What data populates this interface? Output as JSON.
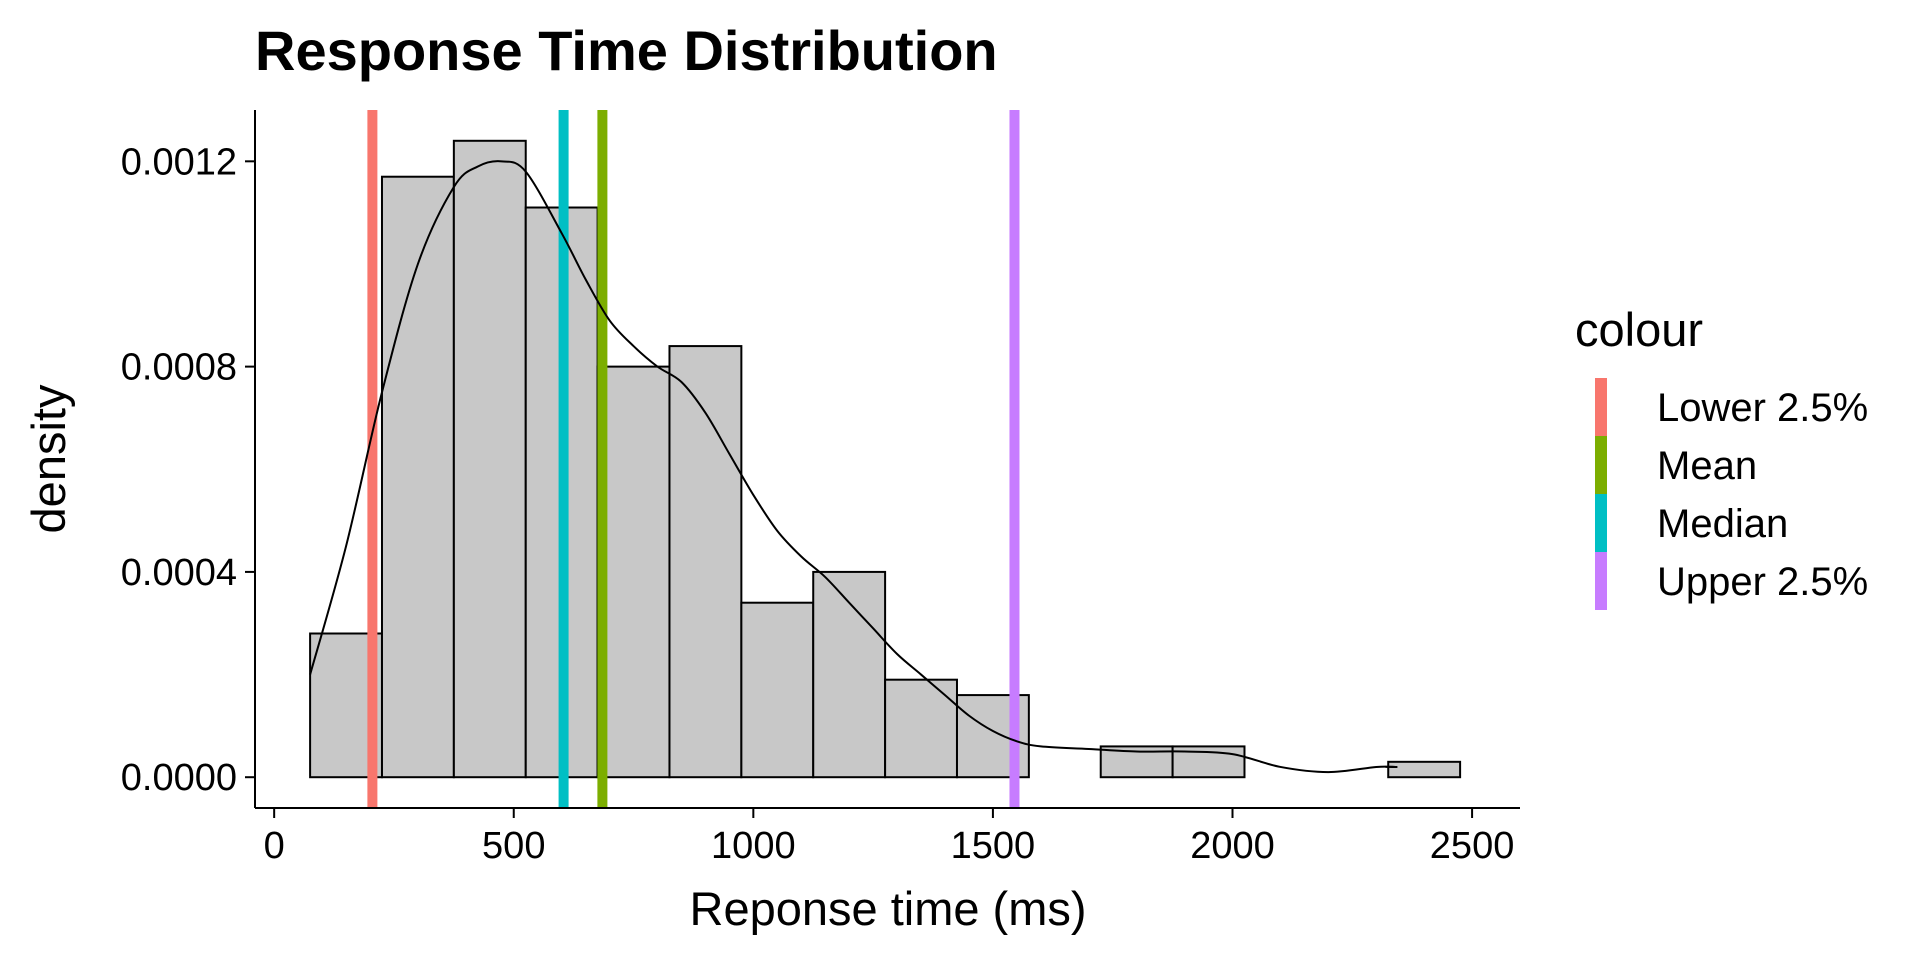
{
  "chart_data": {
    "type": "histogram",
    "title": "Response Time Distribution",
    "xlabel": "Reponse time (ms)",
    "ylabel": "density",
    "xlim": [
      -40,
      2600
    ],
    "ylim": [
      -6e-05,
      0.0013
    ],
    "x_ticks": [
      0,
      500,
      1000,
      1500,
      2000,
      2500
    ],
    "x_tick_labels": [
      "0",
      "500",
      "1000",
      "1500",
      "2000",
      "2500"
    ],
    "y_ticks": [
      0.0,
      0.0004,
      0.0008,
      0.0012
    ],
    "y_tick_labels": [
      "0.0000",
      "0.0004",
      "0.0008",
      "0.0012"
    ],
    "grid": false,
    "bins": [
      {
        "x0": 75,
        "x1": 225,
        "density": 0.00028
      },
      {
        "x0": 225,
        "x1": 375,
        "density": 0.00117
      },
      {
        "x0": 375,
        "x1": 525,
        "density": 0.00124
      },
      {
        "x0": 525,
        "x1": 675,
        "density": 0.00111
      },
      {
        "x0": 675,
        "x1": 825,
        "density": 0.0008
      },
      {
        "x0": 825,
        "x1": 975,
        "density": 0.00084
      },
      {
        "x0": 975,
        "x1": 1125,
        "density": 0.00034
      },
      {
        "x0": 1125,
        "x1": 1275,
        "density": 0.0004
      },
      {
        "x0": 1275,
        "x1": 1425,
        "density": 0.00019
      },
      {
        "x0": 1425,
        "x1": 1575,
        "density": 0.00016
      },
      {
        "x0": 1575,
        "x1": 1725,
        "density": 0.0
      },
      {
        "x0": 1725,
        "x1": 1875,
        "density": 6e-05
      },
      {
        "x0": 1875,
        "x1": 2025,
        "density": 6e-05
      },
      {
        "x0": 2025,
        "x1": 2175,
        "density": 0.0
      },
      {
        "x0": 2175,
        "x1": 2325,
        "density": 0.0
      },
      {
        "x0": 2325,
        "x1": 2475,
        "density": 3e-05
      }
    ],
    "density_curve": {
      "x": [
        75,
        150,
        225,
        300,
        375,
        425,
        475,
        525,
        600,
        650,
        700,
        750,
        800,
        850,
        900,
        950,
        1000,
        1050,
        1100,
        1150,
        1200,
        1250,
        1300,
        1350,
        1400,
        1450,
        1500,
        1550,
        1600,
        1700,
        1800,
        1900,
        2000,
        2100,
        2200,
        2300,
        2340
      ],
      "y": [
        0.0002,
        0.00045,
        0.00075,
        0.001,
        0.00115,
        0.00119,
        0.0012,
        0.00118,
        0.00106,
        0.00097,
        0.00089,
        0.00084,
        0.0008,
        0.00077,
        0.00071,
        0.00063,
        0.00055,
        0.00048,
        0.00043,
        0.00039,
        0.00034,
        0.00029,
        0.00024,
        0.0002,
        0.00016,
        0.00012,
        9e-05,
        7e-05,
        6e-05,
        5.5e-05,
        5e-05,
        5e-05,
        4.5e-05,
        2e-05,
        1e-05,
        2e-05,
        2e-05
      ]
    },
    "vlines": [
      {
        "name": "Lower 2.5%",
        "x": 205,
        "color": "#F8766D"
      },
      {
        "name": "Median",
        "x": 604,
        "color": "#00BFC4"
      },
      {
        "name": "Mean",
        "x": 685,
        "color": "#7CAE00"
      },
      {
        "name": "Upper 2.5%",
        "x": 1545,
        "color": "#C77CFF"
      }
    ],
    "bar_fill": "#C8C8C8",
    "bar_stroke": "#000000",
    "legend": {
      "title": "colour",
      "position": "right",
      "entries": [
        {
          "label": "Lower 2.5%",
          "color": "#F8766D"
        },
        {
          "label": "Mean",
          "color": "#7CAE00"
        },
        {
          "label": "Median",
          "color": "#00BFC4"
        },
        {
          "label": "Upper 2.5%",
          "color": "#C77CFF"
        }
      ]
    }
  }
}
